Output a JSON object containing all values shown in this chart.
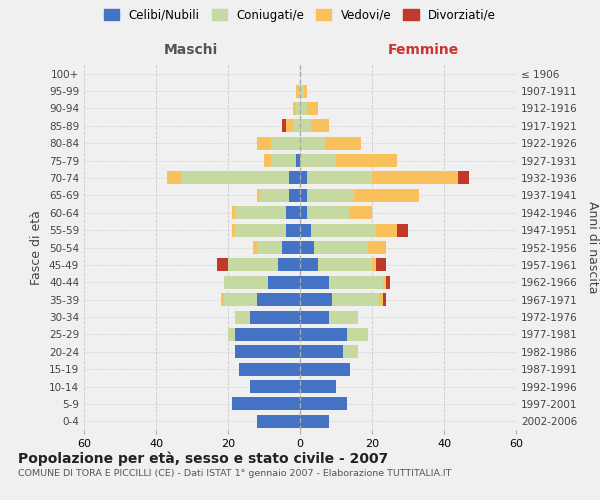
{
  "age_groups": [
    "0-4",
    "5-9",
    "10-14",
    "15-19",
    "20-24",
    "25-29",
    "30-34",
    "35-39",
    "40-44",
    "45-49",
    "50-54",
    "55-59",
    "60-64",
    "65-69",
    "70-74",
    "75-79",
    "80-84",
    "85-89",
    "90-94",
    "95-99",
    "100+"
  ],
  "birth_years": [
    "2002-2006",
    "1997-2001",
    "1992-1996",
    "1987-1991",
    "1982-1986",
    "1977-1981",
    "1972-1976",
    "1967-1971",
    "1962-1966",
    "1957-1961",
    "1952-1956",
    "1947-1951",
    "1942-1946",
    "1937-1941",
    "1932-1936",
    "1927-1931",
    "1922-1926",
    "1917-1921",
    "1912-1916",
    "1907-1911",
    "≤ 1906"
  ],
  "maschi": {
    "celibi": [
      12,
      19,
      14,
      17,
      18,
      18,
      14,
      12,
      9,
      6,
      5,
      4,
      4,
      3,
      3,
      1,
      0,
      0,
      0,
      0,
      0
    ],
    "coniugati": [
      0,
      0,
      0,
      0,
      0,
      2,
      4,
      9,
      12,
      14,
      7,
      14,
      14,
      8,
      30,
      7,
      8,
      2,
      1,
      0,
      0
    ],
    "vedovi": [
      0,
      0,
      0,
      0,
      0,
      0,
      0,
      1,
      0,
      0,
      1,
      1,
      1,
      1,
      4,
      2,
      4,
      2,
      1,
      1,
      0
    ],
    "divorziati": [
      0,
      0,
      0,
      0,
      0,
      0,
      0,
      0,
      0,
      3,
      0,
      0,
      0,
      0,
      0,
      0,
      0,
      1,
      0,
      0,
      0
    ]
  },
  "femmine": {
    "nubili": [
      8,
      13,
      10,
      14,
      12,
      13,
      8,
      9,
      8,
      5,
      4,
      3,
      2,
      2,
      2,
      0,
      0,
      0,
      0,
      0,
      0
    ],
    "coniugate": [
      0,
      0,
      0,
      0,
      4,
      6,
      8,
      13,
      15,
      15,
      15,
      18,
      12,
      13,
      18,
      10,
      7,
      3,
      2,
      1,
      0
    ],
    "vedove": [
      0,
      0,
      0,
      0,
      0,
      0,
      0,
      1,
      1,
      1,
      5,
      6,
      6,
      18,
      24,
      17,
      10,
      5,
      3,
      1,
      0
    ],
    "divorziate": [
      0,
      0,
      0,
      0,
      0,
      0,
      0,
      1,
      1,
      3,
      0,
      3,
      0,
      0,
      3,
      0,
      0,
      0,
      0,
      0,
      0
    ]
  },
  "colors": {
    "celibi_nubili": "#4472C4",
    "coniugati_e": "#C6D9A0",
    "vedovi_e": "#F9C15C",
    "divorziati_e": "#C0392B"
  },
  "title": "Popolazione per età, sesso e stato civile - 2007",
  "subtitle": "COMUNE DI TORA E PICCILLI (CE) - Dati ISTAT 1° gennaio 2007 - Elaborazione TUTTITALIA.IT",
  "xlabel_left": "Maschi",
  "xlabel_right": "Femmine",
  "ylabel_left": "Fasce di età",
  "ylabel_right": "Anni di nascita",
  "xlim": 60,
  "background_color": "#f0f0f0"
}
